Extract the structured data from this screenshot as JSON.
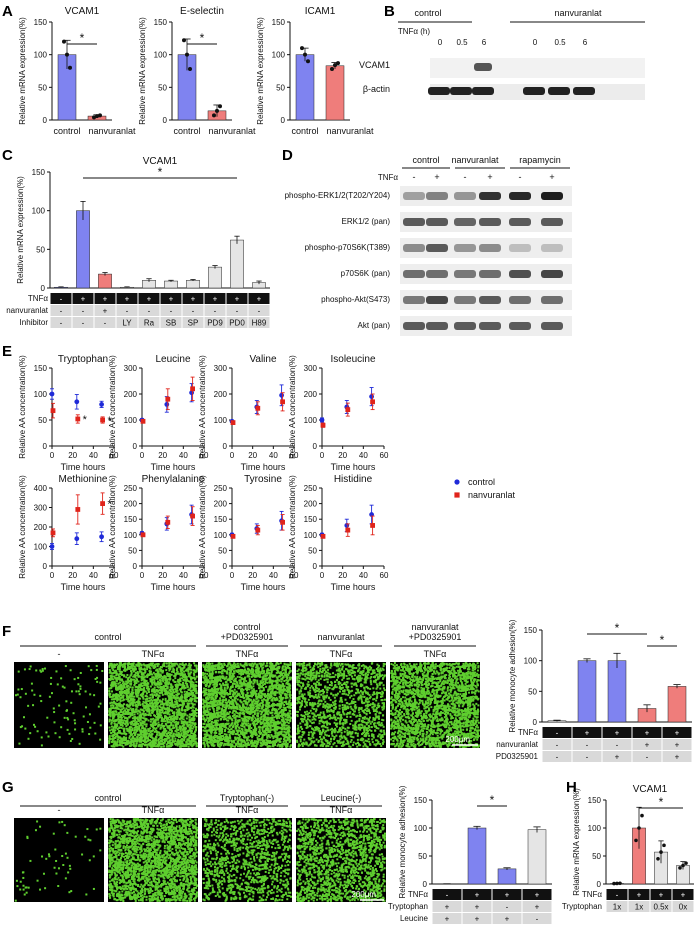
{
  "colors": {
    "blue": "#7f83f0",
    "red": "#ef7d7b",
    "grey": "#e5e5e5",
    "point_blue": "#1f2ad8",
    "point_red": "#e0241b",
    "fluor_green": "#5fcf2f",
    "error_blue": "#1f2ad8",
    "error_red": "#e0241b"
  },
  "panel_labels": [
    "A",
    "B",
    "C",
    "D",
    "E",
    "F",
    "G",
    "H"
  ],
  "text": {
    "star": "*",
    "tnfa": "TNFα",
    "plus": "+",
    "minus": "-",
    "scale_bar": "200μm"
  },
  "panel_b": {
    "group_labels": [
      "control",
      "nanvuranlat"
    ],
    "time_header": "TNFα (h)",
    "times": [
      "0",
      "0.5",
      "6",
      "0",
      "0.5",
      "6"
    ],
    "row_labels": [
      "VCAM1",
      "β-actin"
    ]
  },
  "panel_d": {
    "group_labels": [
      "control",
      "nanvuranlat",
      "rapamycin"
    ],
    "tnfa_row": [
      "-",
      "+",
      "-",
      "+",
      "-",
      "+"
    ],
    "row_labels": [
      "phospho-ERK1/2(T202/Y204)",
      "ERK1/2 (pan)",
      "phospho-p70S6K(T389)",
      "p70S6K (pan)",
      "phospho-Akt(S473)",
      "Akt (pan)"
    ]
  },
  "panel_f": {
    "image_headers": [
      "control",
      "control\n+PD0325901",
      "nanvuranlat",
      "nanvuranlat\n+PD0325901"
    ],
    "image_sublabels": [
      "-",
      "TNFα",
      "TNFα",
      "TNFα",
      "TNFα"
    ]
  },
  "panel_g": {
    "image_headers": [
      "control",
      "Tryptophan(-)",
      "Leucine(-)"
    ],
    "image_sublabels": [
      "-",
      "TNFα",
      "TNFα",
      "TNFα"
    ]
  },
  "legend_e": {
    "entries": [
      "control",
      "nanvuranlat"
    ]
  },
  "chart_data": [
    {
      "id": "A1",
      "type": "bar",
      "title": "VCAM1",
      "ylabel": "Relative mRNA expression(%)",
      "ylim": [
        0,
        150
      ],
      "yticks": [
        0,
        50,
        100,
        150
      ],
      "categories": [
        "control",
        "nanvuranlat"
      ],
      "values": [
        100,
        6
      ],
      "errors": [
        22,
        2
      ],
      "points": [
        [
          120,
          100,
          80
        ],
        [
          4,
          6,
          7
        ]
      ],
      "significance": "*"
    },
    {
      "id": "A2",
      "type": "bar",
      "title": "E-selectin",
      "ylabel": "Relative mRNA expression(%)",
      "ylim": [
        0,
        150
      ],
      "yticks": [
        0,
        50,
        100,
        150
      ],
      "categories": [
        "control",
        "nanvuranlat"
      ],
      "values": [
        100,
        14
      ],
      "errors": [
        24,
        9
      ],
      "points": [
        [
          122,
          100,
          78
        ],
        [
          7,
          14,
          21
        ]
      ],
      "significance": "*"
    },
    {
      "id": "A3",
      "type": "bar",
      "title": "ICAM1",
      "ylabel": "Relative mRNA expression(%)",
      "ylim": [
        0,
        150
      ],
      "yticks": [
        0,
        50,
        100,
        150
      ],
      "categories": [
        "control",
        "nanvuranlat"
      ],
      "values": [
        100,
        83
      ],
      "errors": [
        10,
        5
      ],
      "points": [
        [
          110,
          100,
          90
        ],
        [
          78,
          84,
          87
        ]
      ]
    },
    {
      "id": "C",
      "type": "bar",
      "title": "VCAM1",
      "ylabel": "Relative mRNA expression(%)",
      "ylim": [
        0,
        150
      ],
      "yticks": [
        0,
        50,
        100,
        150
      ],
      "values": [
        1,
        100,
        18,
        1,
        10,
        9,
        10,
        27,
        62,
        7
      ],
      "errors": [
        0.5,
        12,
        2,
        0.5,
        2,
        1,
        1,
        2,
        5,
        2
      ],
      "row_tnfa": [
        "-",
        "+",
        "+",
        "+",
        "+",
        "+",
        "+",
        "+",
        "+",
        "+"
      ],
      "row_nanvuranlat": [
        "-",
        "-",
        "+",
        "-",
        "-",
        "-",
        "-",
        "-",
        "-",
        "-"
      ],
      "row_inhibitor": [
        "-",
        "-",
        "-",
        "LY",
        "Ra",
        "SB",
        "SP",
        "PD9",
        "PD0",
        "H89"
      ],
      "row_titles": [
        "TNFα",
        "nanvuranlat",
        "Inhibitor"
      ],
      "significance": "*"
    },
    {
      "id": "E1",
      "type": "scatter",
      "title": "Tryptophan",
      "xlabel": "Time hours",
      "ylabel": "Relative AA concentration(%)",
      "xlim": [
        0,
        60
      ],
      "xticks": [
        0,
        20,
        40,
        60
      ],
      "ylim": [
        0,
        150
      ],
      "yticks": [
        0,
        50,
        100,
        150
      ],
      "series": [
        {
          "name": "control",
          "x": [
            0,
            24,
            48
          ],
          "y": [
            100,
            85,
            80
          ],
          "err": [
            10,
            14,
            6
          ]
        },
        {
          "name": "nanvuranlat",
          "x": [
            0,
            24,
            48
          ],
          "y": [
            68,
            52,
            50
          ],
          "err": [
            14,
            8,
            6
          ]
        }
      ],
      "significance_at": [
        24,
        48
      ]
    },
    {
      "id": "E2",
      "type": "scatter",
      "title": "Leucine",
      "xlabel": "Time hours",
      "ylabel": "Relative AA concentration(%)",
      "xlim": [
        0,
        60
      ],
      "xticks": [
        0,
        20,
        40,
        60
      ],
      "ylim": [
        0,
        300
      ],
      "yticks": [
        0,
        100,
        200,
        300
      ],
      "series": [
        {
          "name": "control",
          "x": [
            0,
            24,
            48
          ],
          "y": [
            100,
            160,
            205
          ],
          "err": [
            5,
            30,
            35
          ]
        },
        {
          "name": "nanvuranlat",
          "x": [
            0,
            24,
            48
          ],
          "y": [
            95,
            180,
            220
          ],
          "err": [
            5,
            40,
            45
          ]
        }
      ]
    },
    {
      "id": "E3",
      "type": "scatter",
      "title": "Valine",
      "xlabel": "Time hours",
      "ylabel": "Relative AA concentration(%)",
      "xlim": [
        0,
        60
      ],
      "xticks": [
        0,
        20,
        40,
        60
      ],
      "ylim": [
        0,
        300
      ],
      "yticks": [
        0,
        100,
        200,
        300
      ],
      "series": [
        {
          "name": "control",
          "x": [
            0,
            24,
            48
          ],
          "y": [
            95,
            150,
            195
          ],
          "err": [
            5,
            25,
            40
          ]
        },
        {
          "name": "nanvuranlat",
          "x": [
            0,
            24,
            48
          ],
          "y": [
            90,
            145,
            170
          ],
          "err": [
            5,
            25,
            35
          ]
        }
      ]
    },
    {
      "id": "E4",
      "type": "scatter",
      "title": "Isoleucine",
      "xlabel": "Time hours",
      "ylabel": "Relative AA concentration(%)",
      "xlim": [
        0,
        60
      ],
      "xticks": [
        0,
        20,
        40,
        60
      ],
      "ylim": [
        0,
        300
      ],
      "yticks": [
        0,
        100,
        200,
        300
      ],
      "series": [
        {
          "name": "control",
          "x": [
            0,
            24,
            48
          ],
          "y": [
            100,
            150,
            190
          ],
          "err": [
            8,
            25,
            35
          ]
        },
        {
          "name": "nanvuranlat",
          "x": [
            0,
            24,
            48
          ],
          "y": [
            80,
            140,
            170
          ],
          "err": [
            8,
            25,
            30
          ]
        }
      ]
    },
    {
      "id": "E5",
      "type": "scatter",
      "title": "Methionine",
      "xlabel": "Time hours",
      "ylabel": "Relative AA concentration(%)",
      "xlim": [
        0,
        60
      ],
      "xticks": [
        0,
        20,
        40,
        60
      ],
      "ylim": [
        0,
        400
      ],
      "yticks": [
        0,
        100,
        200,
        300,
        400
      ],
      "series": [
        {
          "name": "control",
          "x": [
            0,
            24,
            48
          ],
          "y": [
            100,
            140,
            150
          ],
          "err": [
            15,
            30,
            25
          ]
        },
        {
          "name": "nanvuranlat",
          "x": [
            0,
            24,
            48
          ],
          "y": [
            170,
            290,
            320
          ],
          "err": [
            20,
            75,
            55
          ]
        }
      ],
      "significance_at": [
        48
      ]
    },
    {
      "id": "E6",
      "type": "scatter",
      "title": "Phenylalanine",
      "xlabel": "Time hours",
      "ylabel": "Relative AA concentration(%)",
      "xlim": [
        0,
        60
      ],
      "xticks": [
        0,
        20,
        40,
        60
      ],
      "ylim": [
        0,
        250
      ],
      "yticks": [
        0,
        50,
        100,
        150,
        200,
        250
      ],
      "series": [
        {
          "name": "control",
          "x": [
            0,
            24,
            48
          ],
          "y": [
            105,
            135,
            165
          ],
          "err": [
            5,
            20,
            30
          ]
        },
        {
          "name": "nanvuranlat",
          "x": [
            0,
            24,
            48
          ],
          "y": [
            100,
            140,
            160
          ],
          "err": [
            5,
            20,
            30
          ]
        }
      ]
    },
    {
      "id": "E7",
      "type": "scatter",
      "title": "Tyrosine",
      "xlabel": "Time hours",
      "ylabel": "Relative AA concentration(%)",
      "xlim": [
        0,
        60
      ],
      "xticks": [
        0,
        20,
        40,
        60
      ],
      "ylim": [
        0,
        250
      ],
      "yticks": [
        0,
        50,
        100,
        150,
        200,
        250
      ],
      "series": [
        {
          "name": "control",
          "x": [
            0,
            24,
            48
          ],
          "y": [
            100,
            120,
            145
          ],
          "err": [
            5,
            15,
            30
          ]
        },
        {
          "name": "nanvuranlat",
          "x": [
            0,
            24,
            48
          ],
          "y": [
            95,
            115,
            140
          ],
          "err": [
            5,
            15,
            25
          ]
        }
      ]
    },
    {
      "id": "E8",
      "type": "scatter",
      "title": "Histidine",
      "xlabel": "Time hours",
      "ylabel": "Relative AA concentration(%)",
      "xlim": [
        0,
        60
      ],
      "xticks": [
        0,
        20,
        40,
        60
      ],
      "ylim": [
        0,
        250
      ],
      "yticks": [
        0,
        50,
        100,
        150,
        200,
        250
      ],
      "series": [
        {
          "name": "control",
          "x": [
            0,
            24,
            48
          ],
          "y": [
            100,
            130,
            165
          ],
          "err": [
            5,
            20,
            30
          ]
        },
        {
          "name": "nanvuranlat",
          "x": [
            0,
            24,
            48
          ],
          "y": [
            95,
            115,
            130
          ],
          "err": [
            5,
            20,
            30
          ]
        }
      ]
    },
    {
      "id": "F",
      "type": "bar",
      "ylabel": "Relative monocyte adhesion(%)",
      "ylim": [
        0,
        150
      ],
      "yticks": [
        0,
        50,
        100,
        150
      ],
      "values": [
        2,
        100,
        100,
        22,
        58
      ],
      "errors": [
        1,
        3,
        12,
        6,
        3
      ],
      "row_tnfa": [
        "-",
        "+",
        "+",
        "+",
        "+"
      ],
      "row_nanvuranlat": [
        "-",
        "-",
        "-",
        "+",
        "+"
      ],
      "row_pd": [
        "-",
        "-",
        "+",
        "-",
        "+"
      ],
      "row_titles": [
        "TNFα",
        "nanvuranlat",
        "PD0325901"
      ],
      "significance": [
        "*",
        "*"
      ]
    },
    {
      "id": "G",
      "type": "bar",
      "ylabel": "Relative monocyte adhesion(%)",
      "ylim": [
        0,
        150
      ],
      "yticks": [
        0,
        50,
        100,
        150
      ],
      "values": [
        0,
        100,
        27,
        97
      ],
      "errors": [
        0.5,
        3,
        2,
        5
      ],
      "row_tnfa": [
        "-",
        "+",
        "+",
        "+"
      ],
      "row_trp": [
        "+",
        "+",
        "-",
        "+"
      ],
      "row_leu": [
        "+",
        "+",
        "+",
        "-"
      ],
      "row_titles": [
        "TNFα",
        "Tryptophan",
        "Leucine"
      ],
      "significance": "*"
    },
    {
      "id": "H",
      "type": "bar",
      "title": "VCAM1",
      "ylabel": "Relative mRNA expression(%)",
      "ylim": [
        0,
        150
      ],
      "yticks": [
        0,
        50,
        100,
        150
      ],
      "values": [
        1,
        100,
        57,
        33
      ],
      "errors": [
        0.5,
        37,
        20,
        7
      ],
      "row_tnfa": [
        "-",
        "+",
        "+",
        "+"
      ],
      "row_trp": [
        "1x",
        "1x",
        "0.5x",
        "0x"
      ],
      "row_titles": [
        "TNFα",
        "Tryptophan"
      ],
      "significance": "*"
    }
  ]
}
